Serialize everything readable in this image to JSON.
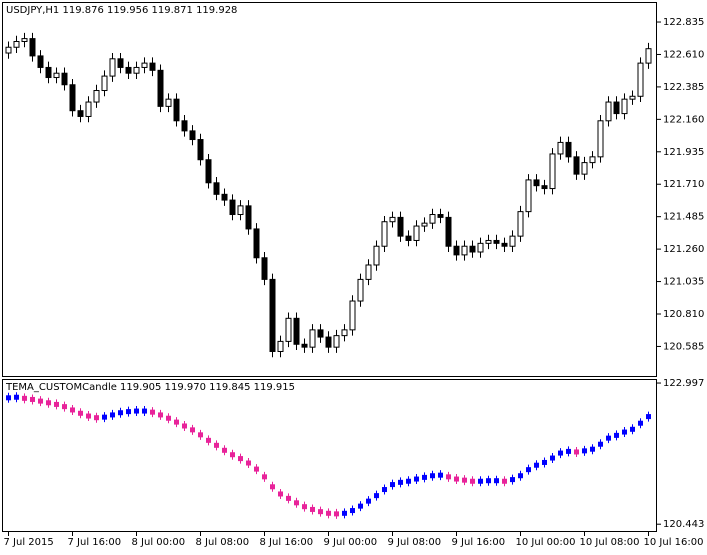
{
  "chart_data": [
    {
      "type": "candlestick",
      "title": "USDJPY,H1  119.876 119.956 119.871 119.928",
      "categories": [
        "7 Jul 2015",
        null,
        null,
        null,
        null,
        null,
        null,
        null,
        "7 Jul 16:00",
        null,
        null,
        null,
        null,
        null,
        null,
        null,
        "8 Jul 00:00",
        null,
        null,
        null,
        null,
        null,
        null,
        null,
        "8 Jul 08:00",
        null,
        null,
        null,
        null,
        null,
        null,
        null,
        "8 Jul 16:00",
        null,
        null,
        null,
        null,
        null,
        null,
        null,
        "9 Jul 00:00",
        null,
        null,
        null,
        null,
        null,
        null,
        null,
        "9 Jul 08:00",
        null,
        null,
        null,
        null,
        null,
        null,
        null,
        "9 Jul 16:00",
        null,
        null,
        null,
        null,
        null,
        null,
        null,
        "10 Jul 00:00",
        null,
        null,
        null,
        null,
        null,
        null,
        null,
        "10 Jul 08:00",
        null,
        null,
        null,
        null,
        null,
        null,
        null,
        "10 Jul 16:00"
      ],
      "open": [
        122.62,
        122.66,
        122.7,
        122.72,
        122.6,
        122.52,
        122.45,
        122.48,
        122.4,
        122.22,
        122.18,
        122.28,
        122.36,
        122.46,
        122.58,
        122.52,
        122.48,
        122.52,
        122.55,
        122.5,
        122.25,
        122.3,
        122.15,
        122.08,
        122.02,
        121.88,
        121.72,
        121.64,
        121.6,
        121.5,
        121.56,
        121.4,
        121.2,
        121.05,
        120.55,
        120.62,
        120.78,
        120.6,
        120.58,
        120.7,
        120.65,
        120.58,
        120.66,
        120.7,
        120.9,
        121.05,
        121.15,
        121.28,
        121.45,
        121.48,
        121.35,
        121.32,
        121.42,
        121.44,
        121.5,
        121.48,
        121.28,
        121.22,
        121.28,
        121.24,
        121.3,
        121.32,
        121.3,
        121.28,
        121.35,
        121.52,
        121.74,
        121.7,
        121.68,
        121.92,
        122.0,
        121.9,
        121.78,
        121.86,
        121.9,
        122.15,
        122.28,
        122.2,
        122.3,
        122.32,
        122.55
      ],
      "high": [
        122.7,
        122.74,
        122.76,
        122.76,
        122.64,
        122.56,
        122.52,
        122.52,
        122.44,
        122.26,
        122.32,
        122.4,
        122.5,
        122.62,
        122.62,
        122.56,
        122.56,
        122.59,
        122.59,
        122.54,
        122.34,
        122.34,
        122.19,
        122.12,
        122.06,
        121.92,
        121.76,
        121.68,
        121.64,
        121.6,
        121.6,
        121.44,
        121.24,
        121.09,
        120.66,
        120.82,
        120.82,
        120.64,
        120.74,
        120.74,
        120.69,
        120.7,
        120.74,
        120.94,
        121.09,
        121.19,
        121.32,
        121.49,
        121.52,
        121.52,
        121.39,
        121.46,
        121.48,
        121.54,
        121.54,
        121.52,
        121.32,
        121.32,
        121.32,
        121.34,
        121.36,
        121.36,
        121.34,
        121.39,
        121.56,
        121.78,
        121.78,
        121.74,
        121.96,
        122.04,
        122.04,
        121.94,
        121.9,
        121.94,
        122.19,
        122.32,
        122.32,
        122.34,
        122.36,
        122.59,
        122.69
      ],
      "low": [
        122.58,
        122.62,
        122.66,
        122.56,
        122.48,
        122.41,
        122.41,
        122.36,
        122.18,
        122.14,
        122.14,
        122.24,
        122.32,
        122.42,
        122.48,
        122.44,
        122.44,
        122.48,
        122.46,
        122.21,
        122.21,
        122.11,
        122.04,
        121.98,
        121.84,
        121.68,
        121.6,
        121.56,
        121.46,
        121.46,
        121.36,
        121.16,
        121.01,
        120.51,
        120.51,
        120.58,
        120.56,
        120.54,
        120.54,
        120.61,
        120.54,
        120.54,
        120.62,
        120.66,
        120.86,
        121.01,
        121.11,
        121.24,
        121.41,
        121.31,
        121.28,
        121.28,
        121.38,
        121.4,
        121.44,
        121.24,
        121.18,
        121.18,
        121.2,
        121.2,
        121.26,
        121.26,
        121.24,
        121.24,
        121.31,
        121.48,
        121.66,
        121.64,
        121.64,
        121.88,
        121.86,
        121.74,
        121.74,
        121.82,
        121.86,
        122.11,
        122.16,
        122.16,
        122.26,
        122.28,
        122.51
      ],
      "close": [
        122.66,
        122.7,
        122.72,
        122.6,
        122.52,
        122.45,
        122.48,
        122.4,
        122.22,
        122.18,
        122.28,
        122.36,
        122.46,
        122.58,
        122.52,
        122.48,
        122.52,
        122.55,
        122.5,
        122.25,
        122.3,
        122.15,
        122.08,
        122.02,
        121.88,
        121.72,
        121.64,
        121.6,
        121.5,
        121.56,
        121.4,
        121.2,
        121.05,
        120.55,
        120.62,
        120.78,
        120.6,
        120.58,
        120.7,
        120.65,
        120.58,
        120.66,
        120.7,
        120.9,
        121.05,
        121.15,
        121.28,
        121.45,
        121.48,
        121.35,
        121.32,
        121.42,
        121.44,
        121.5,
        121.48,
        121.28,
        121.22,
        121.28,
        121.24,
        121.3,
        121.32,
        121.3,
        121.28,
        121.35,
        121.52,
        121.74,
        121.7,
        121.68,
        121.92,
        122.0,
        121.9,
        121.78,
        121.86,
        121.9,
        122.15,
        122.28,
        122.2,
        122.3,
        122.32,
        122.55,
        122.65
      ],
      "up_color": "#ffffff",
      "down_color": "#000000",
      "ylim": [
        120.38,
        122.96
      ],
      "yticks": [
        {
          "value": 122.835,
          "label": "122.835"
        },
        {
          "value": 122.61,
          "label": "122.610"
        },
        {
          "value": 122.385,
          "label": "122.385"
        },
        {
          "value": 122.16,
          "label": "122.160"
        },
        {
          "value": 121.935,
          "label": "121.935"
        },
        {
          "value": 121.71,
          "label": "121.710"
        },
        {
          "value": 121.485,
          "label": "121.485"
        },
        {
          "value": 121.26,
          "label": "121.260"
        },
        {
          "value": 121.035,
          "label": "121.035"
        },
        {
          "value": 120.81,
          "label": "120.810"
        },
        {
          "value": 120.585,
          "label": "120.585"
        }
      ]
    },
    {
      "type": "color-bars",
      "title": "TEMA_CUSTOMCandle 119.905 119.970 119.845 119.915",
      "values": [
        122.73,
        122.74,
        122.72,
        122.7,
        122.67,
        122.64,
        122.61,
        122.57,
        122.51,
        122.45,
        122.4,
        122.37,
        122.38,
        122.42,
        122.46,
        122.48,
        122.49,
        122.49,
        122.47,
        122.42,
        122.36,
        122.29,
        122.22,
        122.15,
        122.06,
        121.96,
        121.87,
        121.78,
        121.7,
        121.63,
        121.55,
        121.44,
        121.3,
        121.12,
        120.99,
        120.91,
        120.83,
        120.76,
        120.71,
        120.67,
        120.64,
        120.63,
        120.64,
        120.69,
        120.77,
        120.86,
        120.96,
        121.07,
        121.16,
        121.2,
        121.22,
        121.26,
        121.29,
        121.32,
        121.33,
        121.3,
        121.26,
        121.24,
        121.22,
        121.22,
        121.23,
        121.23,
        121.22,
        121.25,
        121.32,
        121.43,
        121.51,
        121.56,
        121.64,
        121.73,
        121.76,
        121.75,
        121.77,
        121.8,
        121.89,
        122.0,
        122.05,
        122.11,
        122.16,
        122.27,
        122.39
      ],
      "up_color": "#0000ff",
      "down_color": "#e8239a",
      "ylim": [
        120.32,
        123.07
      ],
      "yticks": [
        122.997,
        120.443
      ]
    }
  ]
}
